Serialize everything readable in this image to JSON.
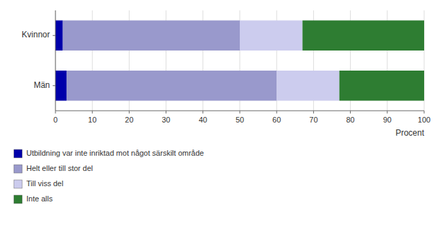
{
  "chart_data": {
    "type": "bar",
    "orientation": "horizontal",
    "stacked": true,
    "categories": [
      "Män",
      "Kvinnor"
    ],
    "series": [
      {
        "name": "Utbildning var inte inriktad mot något särskilt område",
        "color": "#0000AA",
        "values": [
          3,
          2
        ]
      },
      {
        "name": "Helt eller till stor del",
        "color": "#9999CC",
        "values": [
          57,
          48
        ]
      },
      {
        "name": "Till viss del",
        "color": "#CCCCEE",
        "values": [
          17,
          17
        ]
      },
      {
        "name": "Inte alls",
        "color": "#2E7D32",
        "values": [
          23,
          33
        ]
      }
    ],
    "xlabel": "Procent",
    "xlim": [
      0,
      100
    ],
    "xticks": [
      0,
      10,
      20,
      30,
      40,
      50,
      60,
      70,
      80,
      90,
      100
    ],
    "grid": true,
    "legend": "bottom"
  }
}
